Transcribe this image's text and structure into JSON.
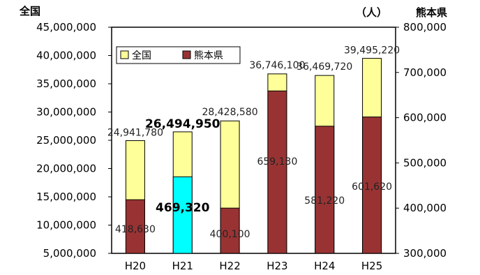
{
  "chart_data": {
    "type": "bar",
    "categories": [
      "H20",
      "H21",
      "H22",
      "H23",
      "H24",
      "H25"
    ],
    "series": [
      {
        "name": "全国",
        "axis": "left",
        "color": "#FFFF99",
        "values": [
          24941780,
          26494950,
          28428580,
          36746100,
          36469720,
          39495220
        ],
        "labels": [
          "24,941,780",
          "26,494,950",
          "28,428,580",
          "36,746,100",
          "36,469,720",
          "39,495,220"
        ]
      },
      {
        "name": "熊本県",
        "axis": "right",
        "color": "#993333",
        "highlight_color": "#00FFFF",
        "highlight_index": 1,
        "values": [
          418630,
          469320,
          400100,
          659130,
          581220,
          601620
        ],
        "labels": [
          "418,630",
          "469,320",
          "400,100",
          "659,130",
          "581,220",
          "601,620"
        ]
      }
    ],
    "emphasis_index": 1,
    "y_left": {
      "label": "全国",
      "lim": [
        5000000,
        45000000
      ],
      "ticks": [
        "5,000,000",
        "10,000,000",
        "15,000,000",
        "20,000,000",
        "25,000,000",
        "30,000,000",
        "35,000,000",
        "40,000,000",
        "45,000,000"
      ]
    },
    "y_right": {
      "label": "熊本県",
      "unit": "（人）",
      "lim": [
        300000,
        800000
      ],
      "ticks": [
        "300,000",
        "400,000",
        "500,000",
        "600,000",
        "700,000",
        "800,000"
      ]
    },
    "legend": {
      "position": "top-left",
      "entries": [
        "全国",
        "熊本県"
      ]
    },
    "grid": false
  }
}
